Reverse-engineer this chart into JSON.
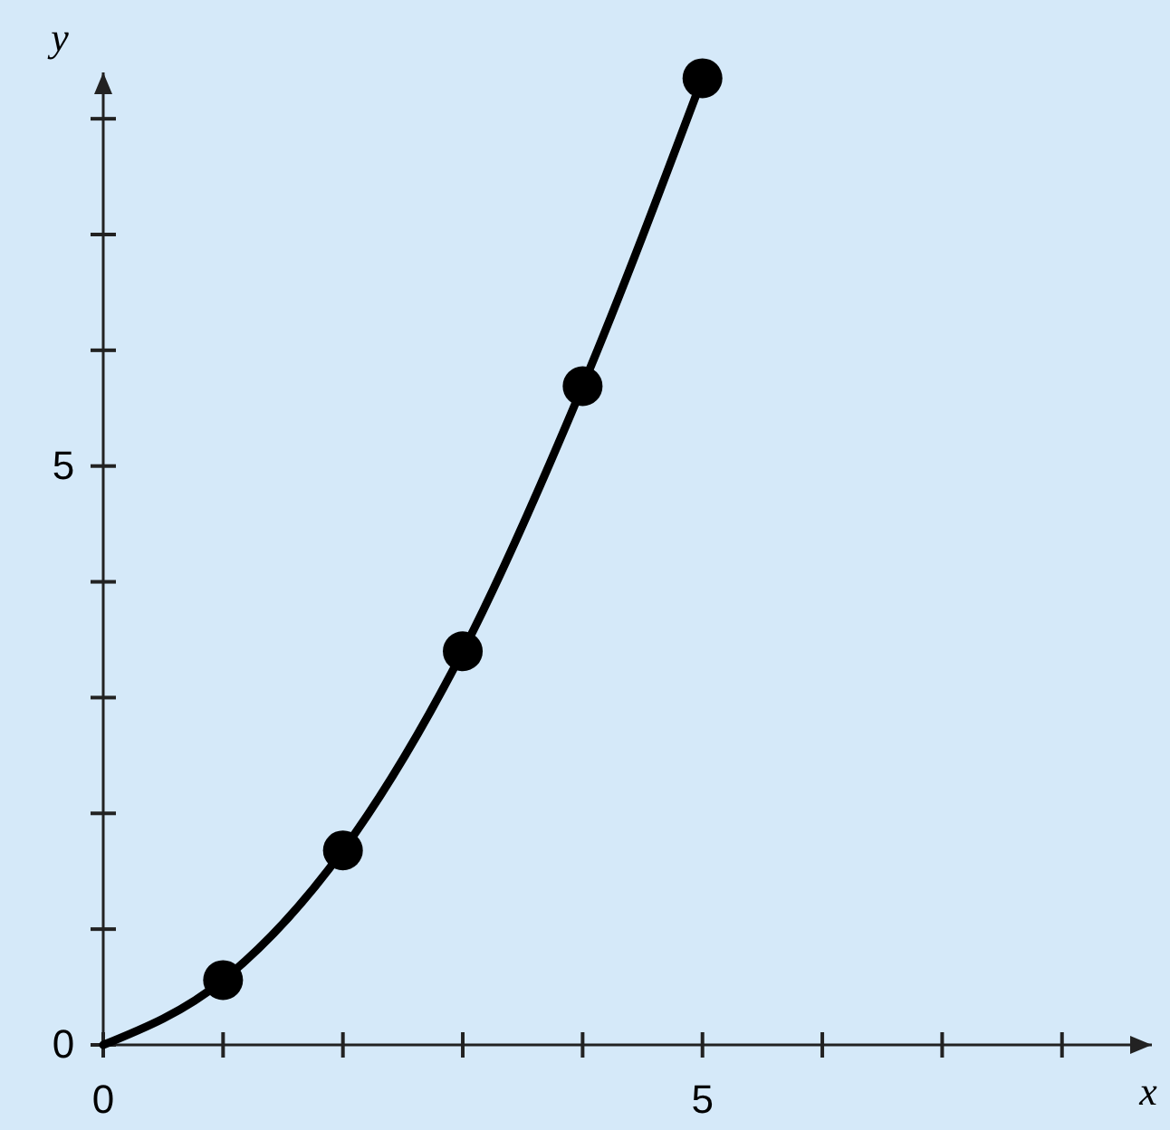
{
  "chart_data": {
    "type": "line",
    "xlabel": "x",
    "ylabel": "y",
    "xlim": [
      0,
      8.75
    ],
    "ylim": [
      0,
      8.4
    ],
    "xticks": [
      0,
      {
        "value": 1,
        "label": null
      },
      {
        "value": 2,
        "label": null
      },
      {
        "value": 3,
        "label": null
      },
      {
        "value": 4,
        "label": null
      },
      5,
      {
        "value": 6,
        "label": null
      },
      {
        "value": 7,
        "label": null
      },
      {
        "value": 8,
        "label": null
      }
    ],
    "yticks": [
      0,
      {
        "value": 1,
        "label": null
      },
      {
        "value": 2,
        "label": null
      },
      {
        "value": 3,
        "label": null
      },
      {
        "value": 4,
        "label": null
      },
      5,
      {
        "value": 6,
        "label": null
      },
      {
        "value": 7,
        "label": null
      },
      {
        "value": 8,
        "label": null
      }
    ],
    "series": [
      {
        "color": "#000000",
        "x": [
          0,
          1,
          2,
          3,
          4,
          5
        ],
        "values": [
          0,
          0.56,
          1.68,
          3.4,
          5.69,
          8.35
        ],
        "marker": "none",
        "line_style": "solid"
      },
      {
        "type": "scatter",
        "color": "#000000",
        "x": [
          1,
          2,
          3,
          4,
          5
        ],
        "values": [
          0.56,
          1.68,
          3.4,
          5.69,
          8.35
        ],
        "marker": "circle"
      }
    ]
  }
}
